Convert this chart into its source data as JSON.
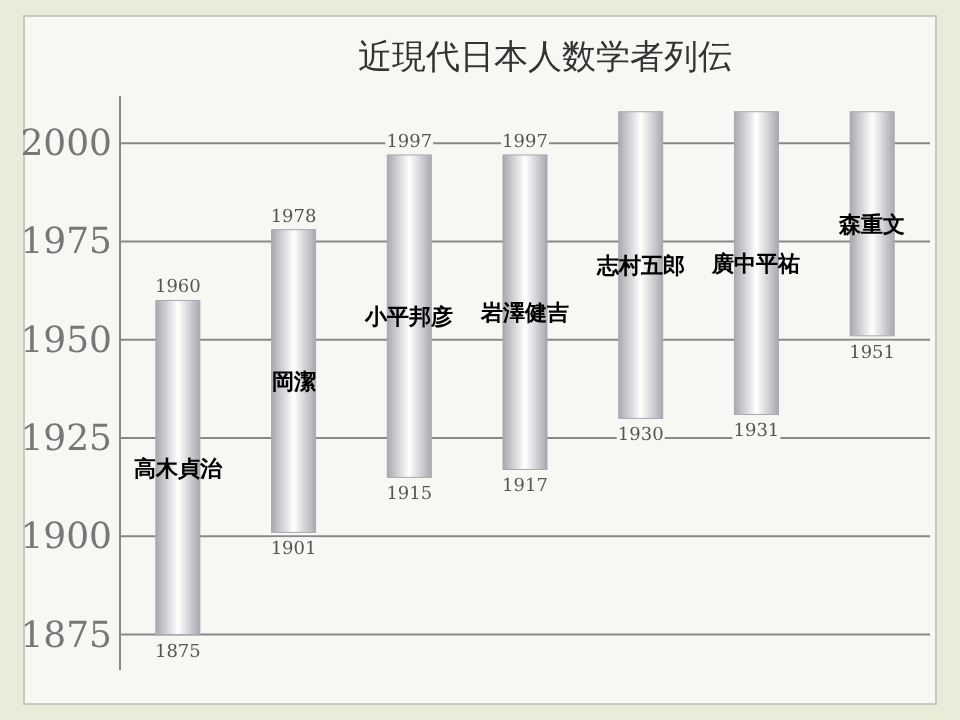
{
  "chart_data": {
    "type": "bar",
    "title": "近現代日本人数学者列伝",
    "categories": [
      "高木貞治",
      "岡潔",
      "小平邦彦",
      "岩澤健吉",
      "志村五郎",
      "廣中平祐",
      "森重文"
    ],
    "base": [
      1875,
      1901,
      1915,
      1917,
      1930,
      1931,
      1951
    ],
    "values": [
      85,
      77,
      82,
      80,
      78,
      77,
      57
    ],
    "color": "#a8a8b0",
    "ylim": [
      1866,
      2012
    ],
    "yticks": [
      1875,
      1900,
      1925,
      1950,
      1975,
      2000
    ],
    "grid": "y",
    "annotations": [
      {
        "text": "1875",
        "x": "高木貞治",
        "y": 1875
      },
      {
        "text": "1960",
        "x": "高木貞治",
        "y": 1960
      },
      {
        "text": "1901",
        "x": "岡潔",
        "y": 1901
      },
      {
        "text": "1978",
        "x": "岡潔",
        "y": 1978
      },
      {
        "text": "1915",
        "x": "小平邦彦",
        "y": 1915
      },
      {
        "text": "1997",
        "x": "小平邦彦",
        "y": 1997
      },
      {
        "text": "1917",
        "x": "岩澤健吉",
        "y": 1917
      },
      {
        "text": "1997",
        "x": "岩澤健吉",
        "y": 1997
      },
      {
        "text": "1930",
        "x": "志村五郎",
        "y": 1930
      },
      {
        "text": "1931",
        "x": "廣中平祐",
        "y": 1931
      },
      {
        "text": "1951",
        "x": "森重文",
        "y": 1951
      }
    ]
  }
}
